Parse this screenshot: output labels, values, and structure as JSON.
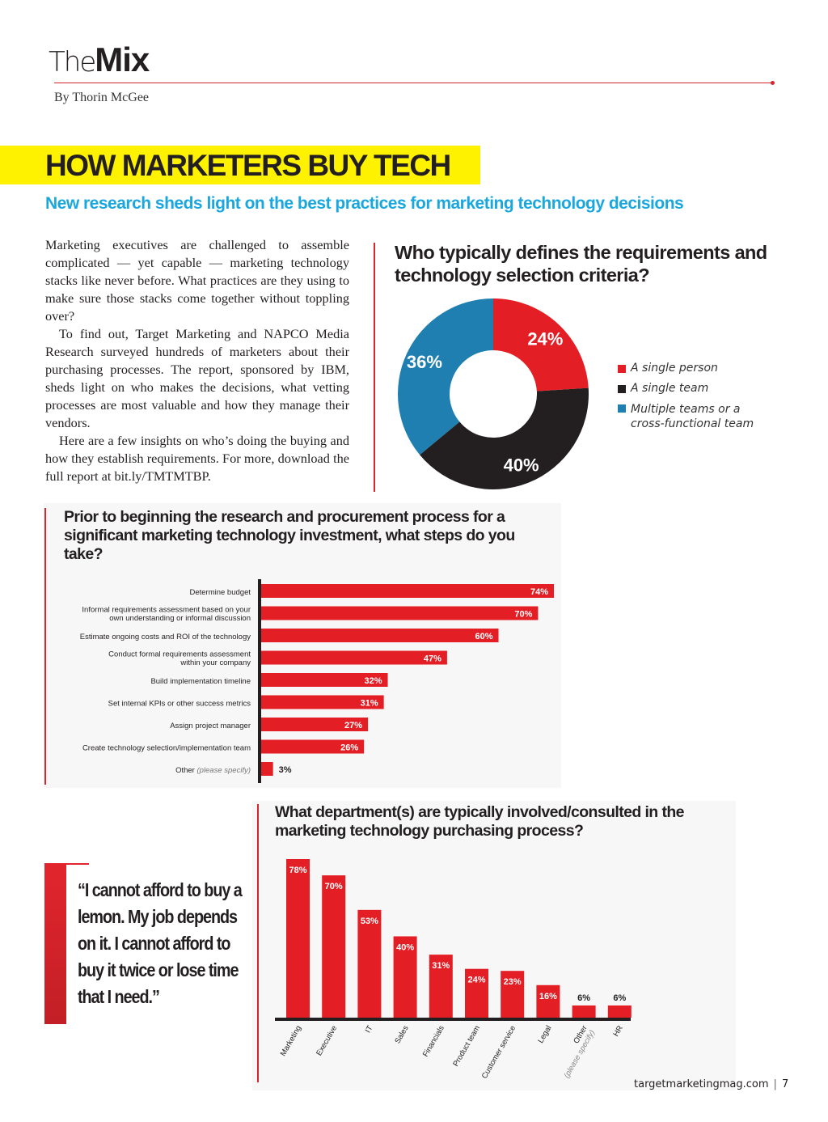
{
  "header": {
    "section_light": "The",
    "section_bold": "Mix",
    "byline": "By Thorin McGee"
  },
  "article": {
    "headline": "HOW MARKETERS BUY TECH",
    "deck": "New research sheds light on the best practices for marketing technology decisions",
    "paragraphs": [
      "Marketing executives are challenged to assemble complicated — yet capable — marketing technology stacks like never before. What practices are they using to make sure those stacks come together without toppling over?",
      "To find out, Target Marketing and NAPCO Media Research surveyed hundreds of marketers about their purchasing processes. The report, sponsored by IBM, sheds light on who makes the decisions, what vetting processes are most valuable and how they manage their vendors.",
      "Here are a few insights on who’s doing the buying and how they establish requirements. For more, download the full report at bit.ly/TMTMTBP."
    ]
  },
  "colors": {
    "red": "#e31e25",
    "black": "#231f20",
    "blue": "#1f7fb0",
    "accent_rule": "#d9262e",
    "headline_highlight": "#fff200",
    "deck": "#1aa7e0"
  },
  "quote": {
    "text": "“I cannot afford to buy a lemon. My job depends on it. I cannot afford to buy it twice or lose time that I need.”"
  },
  "footer": {
    "site": "targetmarketingmag.com",
    "separator": "|",
    "page_number": "7"
  },
  "chart_data": [
    {
      "type": "pie",
      "variant": "donut",
      "title": "Who typically defines the requirements and technology selection criteria?",
      "categories": [
        "A single person",
        "A single team",
        "Multiple teams or a cross-functional team"
      ],
      "values": [
        24,
        40,
        36
      ],
      "unit": "%",
      "data_labels": [
        "24%",
        "40%",
        "36%"
      ],
      "colors": [
        "#e31e25",
        "#231f20",
        "#1f7fb0"
      ],
      "legend_position": "right"
    },
    {
      "type": "bar",
      "orientation": "horizontal",
      "title": "Prior to beginning the research and procurement process for a significant marketing technology investment, what steps do you take?",
      "categories": [
        "Determine budget",
        "Informal requirements assessment based on your own understanding or informal discussion",
        "Estimate ongoing costs and ROI of the technology",
        "Conduct formal requirements assessment within your company",
        "Build implementation timeline",
        "Set internal KPIs or other success metrics",
        "Assign project manager",
        "Create technology selection/implementation team",
        "Other (please specify)"
      ],
      "label_lines": [
        [
          "Determine budget"
        ],
        [
          "Informal requirements assessment based on your",
          "own understanding or informal discussion"
        ],
        [
          "Estimate ongoing costs and ROI of the technology"
        ],
        [
          "Conduct formal requirements assessment",
          "within your company"
        ],
        [
          "Build implementation timeline"
        ],
        [
          "Set internal KPIs or other success metrics"
        ],
        [
          "Assign project manager"
        ],
        [
          "Create technology selection/implementation team"
        ],
        [
          "Other",
          "(please specify)"
        ]
      ],
      "values": [
        74,
        70,
        60,
        47,
        32,
        31,
        27,
        26,
        3
      ],
      "data_labels": [
        "74%",
        "70%",
        "60%",
        "47%",
        "32%",
        "31%",
        "27%",
        "26%",
        "3%"
      ],
      "unit": "%",
      "xlim": [
        0,
        74
      ],
      "grid": false,
      "color": "#e31e25"
    },
    {
      "type": "bar",
      "orientation": "vertical",
      "title": "What department(s) are typically involved/consulted in the marketing technology purchasing process?",
      "categories": [
        "Marketing",
        "Executive",
        "IT",
        "Sales",
        "Financials",
        "Product team",
        "Customer service",
        "Legal",
        "Other (please specify)",
        "HR"
      ],
      "label_lines": [
        [
          "Marketing"
        ],
        [
          "Executive"
        ],
        [
          "IT"
        ],
        [
          "Sales"
        ],
        [
          "Financials"
        ],
        [
          "Product team"
        ],
        [
          "Customer service"
        ],
        [
          "Legal"
        ],
        [
          "Other",
          "(please specify)"
        ],
        [
          "HR"
        ]
      ],
      "values": [
        78,
        70,
        53,
        40,
        31,
        24,
        23,
        16,
        6,
        6
      ],
      "data_labels": [
        "78%",
        "70%",
        "53%",
        "40%",
        "31%",
        "24%",
        "23%",
        "16%",
        "6%",
        "6%"
      ],
      "unit": "%",
      "ylim": [
        0,
        78
      ],
      "grid": false,
      "color": "#e31e25"
    }
  ]
}
